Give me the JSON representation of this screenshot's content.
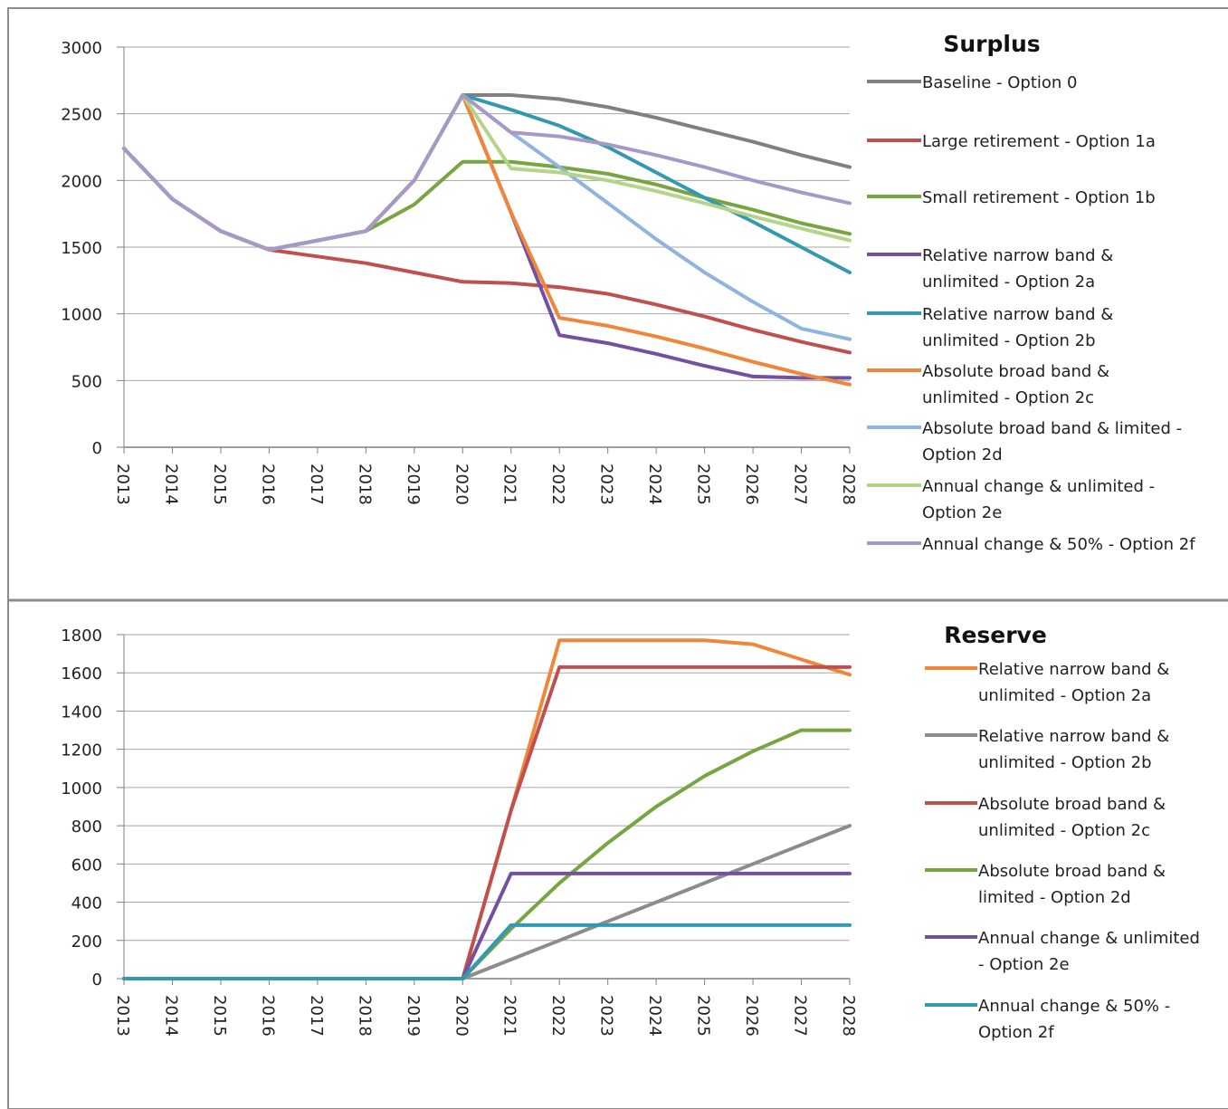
{
  "chart_data": [
    {
      "type": "line",
      "title": "Surplus",
      "x": [
        "2013",
        "2014",
        "2015",
        "2016",
        "2017",
        "2018",
        "2019",
        "2020",
        "2021",
        "2022",
        "2023",
        "2024",
        "2025",
        "2026",
        "2027",
        "2028"
      ],
      "y_ticks": [
        "0",
        "500",
        "1000",
        "1500",
        "2000",
        "2500",
        "3000"
      ],
      "ylim": [
        0,
        3000
      ],
      "grid": true,
      "legend_position": "right",
      "series": [
        {
          "name": [
            "Baseline - Option 0"
          ],
          "color": "#808080",
          "values": [
            2240,
            1860,
            1620,
            1480,
            1550,
            1620,
            2000,
            2640,
            2640,
            2610,
            2550,
            2470,
            2380,
            2290,
            2190,
            2100
          ]
        },
        {
          "name": [
            "Large retirement - Option 1a"
          ],
          "color": "#c0504d",
          "values": [
            2240,
            1860,
            1620,
            1480,
            1430,
            1380,
            1310,
            1240,
            1230,
            1200,
            1150,
            1070,
            980,
            880,
            790,
            710
          ]
        },
        {
          "name": [
            "Small retirement - Option 1b"
          ],
          "color": "#77a641",
          "values": [
            2240,
            1860,
            1620,
            1480,
            1550,
            1620,
            1820,
            2140,
            2140,
            2100,
            2050,
            1970,
            1870,
            1780,
            1680,
            1600
          ]
        },
        {
          "name": [
            "Relative narrow band &",
            "unlimited - Option 2a"
          ],
          "color": "#7350a0",
          "values": [
            2240,
            1860,
            1620,
            1480,
            1550,
            1620,
            2000,
            2640,
            1760,
            840,
            780,
            700,
            610,
            530,
            520,
            520
          ]
        },
        {
          "name": [
            "Relative narrow band &",
            "unlimited - Option 2b"
          ],
          "color": "#3399b0",
          "values": [
            2240,
            1860,
            1620,
            1480,
            1550,
            1620,
            2000,
            2640,
            2530,
            2410,
            2250,
            2060,
            1870,
            1690,
            1500,
            1310
          ]
        },
        {
          "name": [
            "Absolute broad band &",
            "unlimited - Option 2c"
          ],
          "color": "#f0863a",
          "values": [
            2240,
            1860,
            1620,
            1480,
            1550,
            1620,
            2000,
            2640,
            1760,
            970,
            910,
            830,
            740,
            640,
            550,
            470
          ]
        },
        {
          "name": [
            "Absolute broad band & limited -",
            "Option 2d"
          ],
          "color": "#8eb4e0",
          "values": [
            2240,
            1860,
            1620,
            1480,
            1550,
            1620,
            2000,
            2640,
            2360,
            2100,
            1830,
            1560,
            1310,
            1090,
            890,
            810
          ]
        },
        {
          "name": [
            "Annual change & unlimited -",
            "Option 2e"
          ],
          "color": "#b4d48a",
          "values": [
            2240,
            1860,
            1620,
            1480,
            1550,
            1620,
            2000,
            2640,
            2090,
            2060,
            2000,
            1920,
            1830,
            1730,
            1640,
            1550
          ]
        },
        {
          "name": [
            "Annual change & 50% - Option 2f"
          ],
          "color": "#a898c8",
          "values": [
            2240,
            1860,
            1620,
            1480,
            1550,
            1620,
            2000,
            2640,
            2360,
            2330,
            2270,
            2190,
            2100,
            2000,
            1910,
            1830
          ]
        }
      ]
    },
    {
      "type": "line",
      "title": "Reserve",
      "x": [
        "2013",
        "2014",
        "2015",
        "2016",
        "2017",
        "2018",
        "2019",
        "2020",
        "2021",
        "2022",
        "2023",
        "2024",
        "2025",
        "2026",
        "2027",
        "2028"
      ],
      "y_ticks": [
        "0",
        "200",
        "400",
        "600",
        "800",
        "1000",
        "1200",
        "1400",
        "1600",
        "1800"
      ],
      "ylim": [
        0,
        1800
      ],
      "grid": true,
      "legend_position": "right",
      "series": [
        {
          "name": [
            "Relative narrow band &",
            "unlimited - Option 2a"
          ],
          "color": "#f0863a",
          "values": [
            0,
            0,
            0,
            0,
            0,
            0,
            0,
            0,
            880,
            1770,
            1770,
            1770,
            1770,
            1750,
            1670,
            1590
          ]
        },
        {
          "name": [
            "Relative narrow band &",
            "unlimited - Option 2b"
          ],
          "color": "#8c8c8c",
          "values": [
            0,
            0,
            0,
            0,
            0,
            0,
            0,
            0,
            100,
            200,
            300,
            400,
            500,
            600,
            700,
            800
          ]
        },
        {
          "name": [
            "Absolute broad band &",
            "unlimited - Option 2c"
          ],
          "color": "#c0504d",
          "values": [
            0,
            0,
            0,
            0,
            0,
            0,
            0,
            0,
            880,
            1630,
            1630,
            1630,
            1630,
            1630,
            1630,
            1630
          ]
        },
        {
          "name": [
            "Absolute broad band &",
            "limited - Option 2d"
          ],
          "color": "#77a641",
          "values": [
            0,
            0,
            0,
            0,
            0,
            0,
            0,
            0,
            260,
            500,
            710,
            900,
            1060,
            1190,
            1300,
            1300
          ]
        },
        {
          "name": [
            "Annual change & unlimited",
            "- Option 2e"
          ],
          "color": "#7350a0",
          "values": [
            0,
            0,
            0,
            0,
            0,
            0,
            0,
            0,
            550,
            550,
            550,
            550,
            550,
            550,
            550,
            550
          ]
        },
        {
          "name": [
            "Annual change & 50% -",
            "Option 2f"
          ],
          "color": "#3399b0",
          "values": [
            0,
            0,
            0,
            0,
            0,
            0,
            0,
            0,
            280,
            280,
            280,
            280,
            280,
            280,
            280,
            280
          ]
        }
      ]
    }
  ]
}
